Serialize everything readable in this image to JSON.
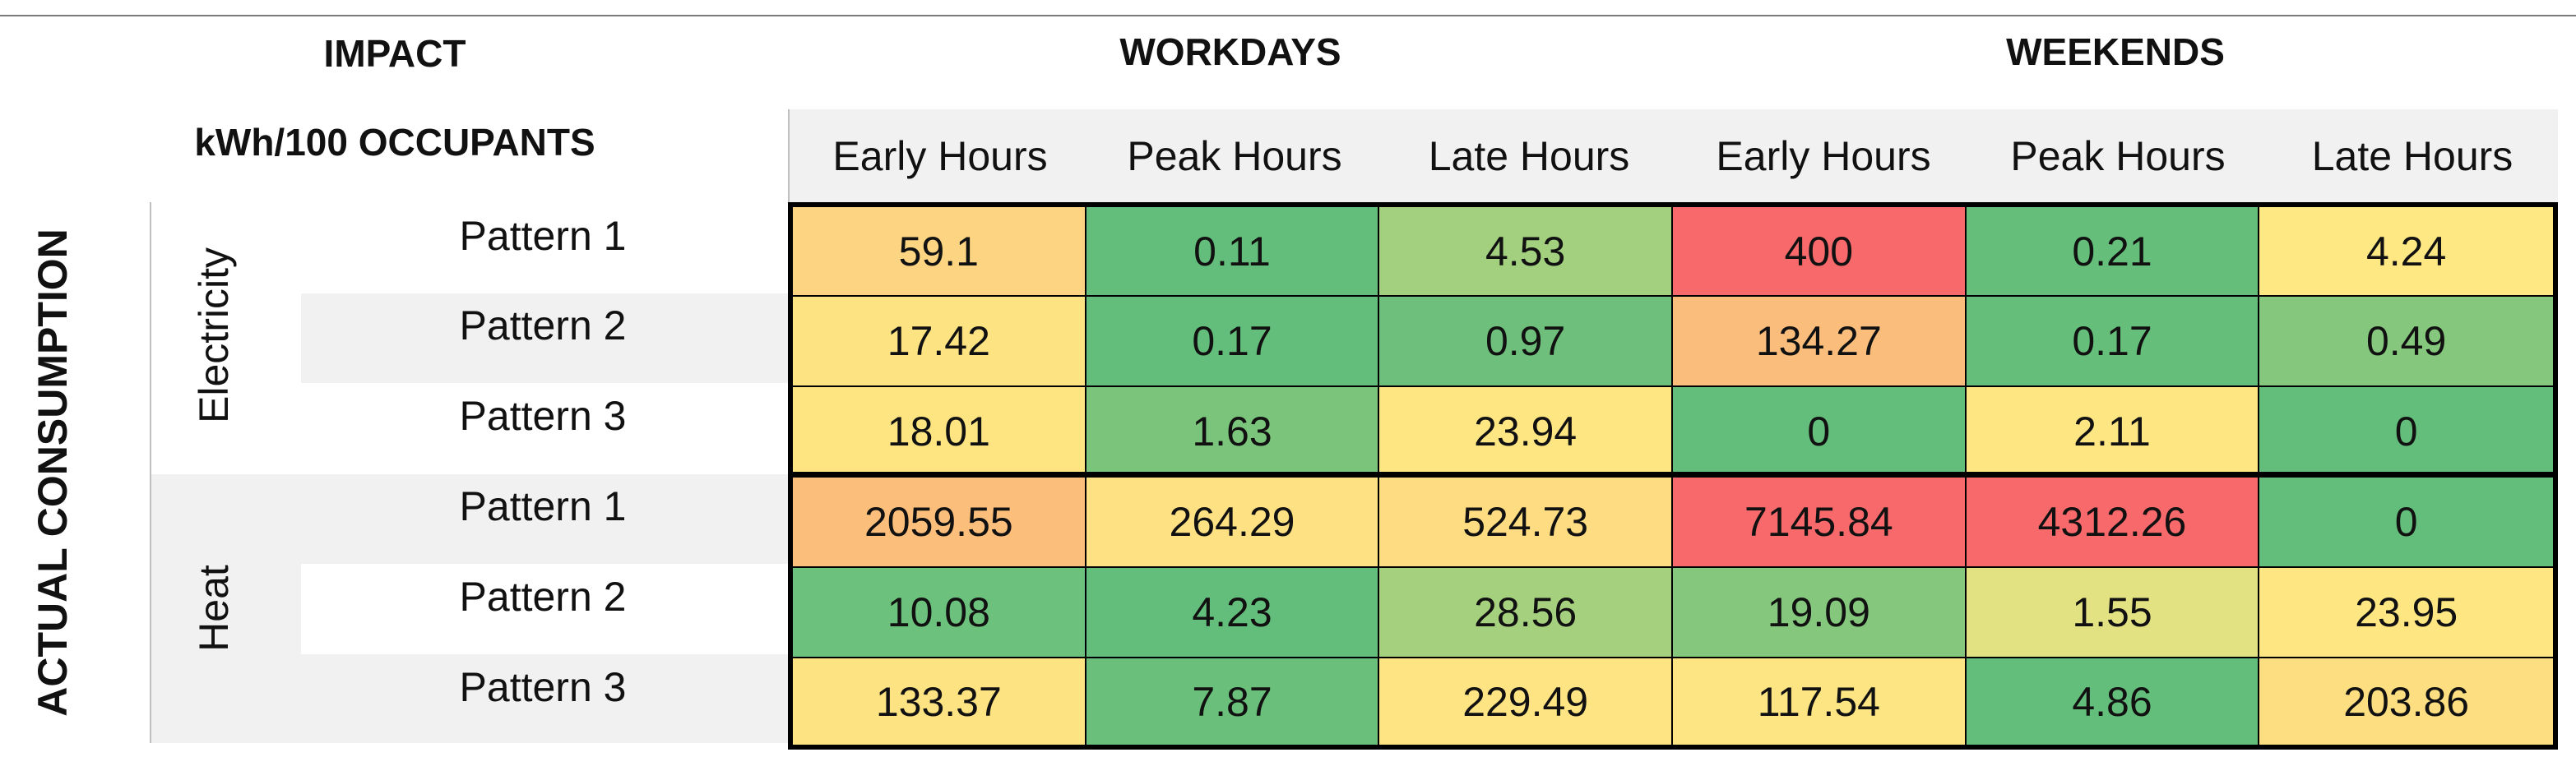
{
  "table": {
    "corner_title": "IMPACT",
    "unit_label": "kWh/100 OCCUPANTS",
    "row_axis_label": "ACTUAL CONSUMPTION",
    "col_groups": [
      "WORKDAYS",
      "WEEKENDS"
    ],
    "col_headers": [
      "Early Hours",
      "Peak Hours",
      "Late Hours",
      "Early Hours",
      "Peak Hours",
      "Late Hours"
    ],
    "row_groups": [
      {
        "name": "Electricity",
        "patterns": [
          "Pattern 1",
          "Pattern 2",
          "Pattern 3"
        ]
      },
      {
        "name": "Heat",
        "patterns": [
          "Pattern 1",
          "Pattern 2",
          "Pattern 3"
        ]
      }
    ]
  },
  "chart_data": {
    "type": "heatmap",
    "title": "",
    "x_groups": [
      "WORKDAYS",
      "WORKDAYS",
      "WORKDAYS",
      "WEEKENDS",
      "WEEKENDS",
      "WEEKENDS"
    ],
    "x": [
      "Early Hours",
      "Peak Hours",
      "Late Hours",
      "Early Hours",
      "Peak Hours",
      "Late Hours"
    ],
    "y_groups": [
      "Electricity",
      "Electricity",
      "Electricity",
      "Heat",
      "Heat",
      "Heat"
    ],
    "y": [
      "Pattern 1",
      "Pattern 2",
      "Pattern 3",
      "Pattern 1",
      "Pattern 2",
      "Pattern 3"
    ],
    "values": [
      [
        "59.1",
        "0.11",
        "4.53",
        "400",
        "0.21",
        "4.24"
      ],
      [
        "17.42",
        "0.17",
        "0.97",
        "134.27",
        "0.17",
        "0.49"
      ],
      [
        "18.01",
        "1.63",
        "23.94",
        "0",
        "2.11",
        "0"
      ],
      [
        "2059.55",
        "264.29",
        "524.73",
        "7145.84",
        "4312.26",
        "0"
      ],
      [
        "10.08",
        "4.23",
        "28.56",
        "19.09",
        "1.55",
        "23.95"
      ],
      [
        "133.37",
        "7.87",
        "229.49",
        "117.54",
        "4.86",
        "203.86"
      ]
    ],
    "cell_colors": [
      [
        "#fdd582",
        "#63be7b",
        "#a2d07f",
        "#f8696b",
        "#65bf7b",
        "#fde884"
      ],
      [
        "#fee382",
        "#64be7b",
        "#6ebf7b",
        "#fbbd7b",
        "#65bf7b",
        "#85c77d"
      ],
      [
        "#fee582",
        "#7bc47c",
        "#fee683",
        "#63be7b",
        "#fee683",
        "#63be7b"
      ],
      [
        "#fbbf7b",
        "#fee182",
        "#fedc81",
        "#f8696b",
        "#f8696b",
        "#63be7b"
      ],
      [
        "#6cc27c",
        "#64be7b",
        "#a5d17f",
        "#84c77d",
        "#e3e282",
        "#fee683"
      ],
      [
        "#fee382",
        "#6abf7b",
        "#fee482",
        "#fee583",
        "#64be7b",
        "#fddf81"
      ]
    ],
    "color_scale": {
      "low": "#63be7b",
      "mid": "#fee683",
      "high": "#f8696b"
    }
  }
}
